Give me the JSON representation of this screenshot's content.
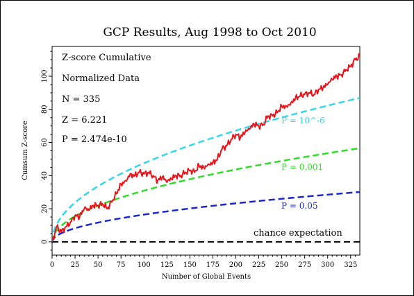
{
  "chart_data": {
    "type": "line",
    "title": "GCP Results, Aug 1998 to Oct 2010",
    "xlabel": "Number of Global Events",
    "ylabel": "Cumsum Z-score",
    "xlim": [
      0,
      335
    ],
    "ylim": [
      -8,
      118
    ],
    "x_ticks": [
      0,
      25,
      50,
      75,
      100,
      125,
      150,
      175,
      200,
      225,
      250,
      275,
      300,
      325
    ],
    "y_ticks": [
      0,
      20,
      40,
      60,
      80,
      100
    ],
    "grid": false,
    "info_lines": [
      "Z-score Cumulative",
      "Normalized Data",
      "N = 335",
      "Z = 6.221",
      "P = 2.474e-10"
    ],
    "colors": {
      "cumulative": "#e8141b",
      "p_1e6": "#33d8e8",
      "p_001": "#2fdc28",
      "p_05": "#1a27cc",
      "chance": "#000000"
    },
    "reference_curves": [
      {
        "label": "P = 10^-6",
        "z": 4.75,
        "color": "#33d8e8",
        "dashed": true
      },
      {
        "label": "P = 0.001",
        "z": 3.09,
        "color": "#2fdc28",
        "dashed": true
      },
      {
        "label": "P = 0.05",
        "z": 1.645,
        "color": "#1a27cc",
        "dashed": true
      },
      {
        "label": "chance expectation",
        "z": 0,
        "color": "#000000",
        "dashed": true
      }
    ],
    "series": [
      {
        "x": [
          0,
          5,
          10,
          15,
          20,
          25,
          30,
          35,
          40,
          45,
          50,
          55,
          60,
          65,
          70,
          75,
          80,
          85,
          90,
          95,
          100,
          105,
          110,
          115,
          120,
          125,
          130,
          135,
          140,
          145,
          150,
          155,
          160,
          165,
          170,
          175,
          180,
          185,
          190,
          195,
          200,
          205,
          210,
          215,
          220,
          225,
          230,
          235,
          240,
          245,
          250,
          255,
          260,
          265,
          270,
          275,
          280,
          285,
          290,
          295,
          300,
          305,
          310,
          315,
          320,
          325,
          330,
          335
        ],
        "values": [
          0,
          9,
          6,
          9,
          12,
          16,
          15,
          20,
          19,
          22,
          22,
          23,
          20,
          24,
          29,
          35,
          37,
          41,
          40,
          42,
          41,
          42,
          40,
          37,
          39,
          36,
          38,
          40,
          40,
          42,
          43,
          42,
          46,
          45,
          47,
          48,
          50,
          56,
          58,
          62,
          65,
          63,
          66,
          68,
          71,
          70,
          71,
          76,
          76,
          78,
          82,
          82,
          84,
          87,
          88,
          89,
          90,
          89,
          92,
          93,
          95,
          98,
          100,
          101,
          104,
          106,
          110,
          112
        ]
      }
    ]
  }
}
